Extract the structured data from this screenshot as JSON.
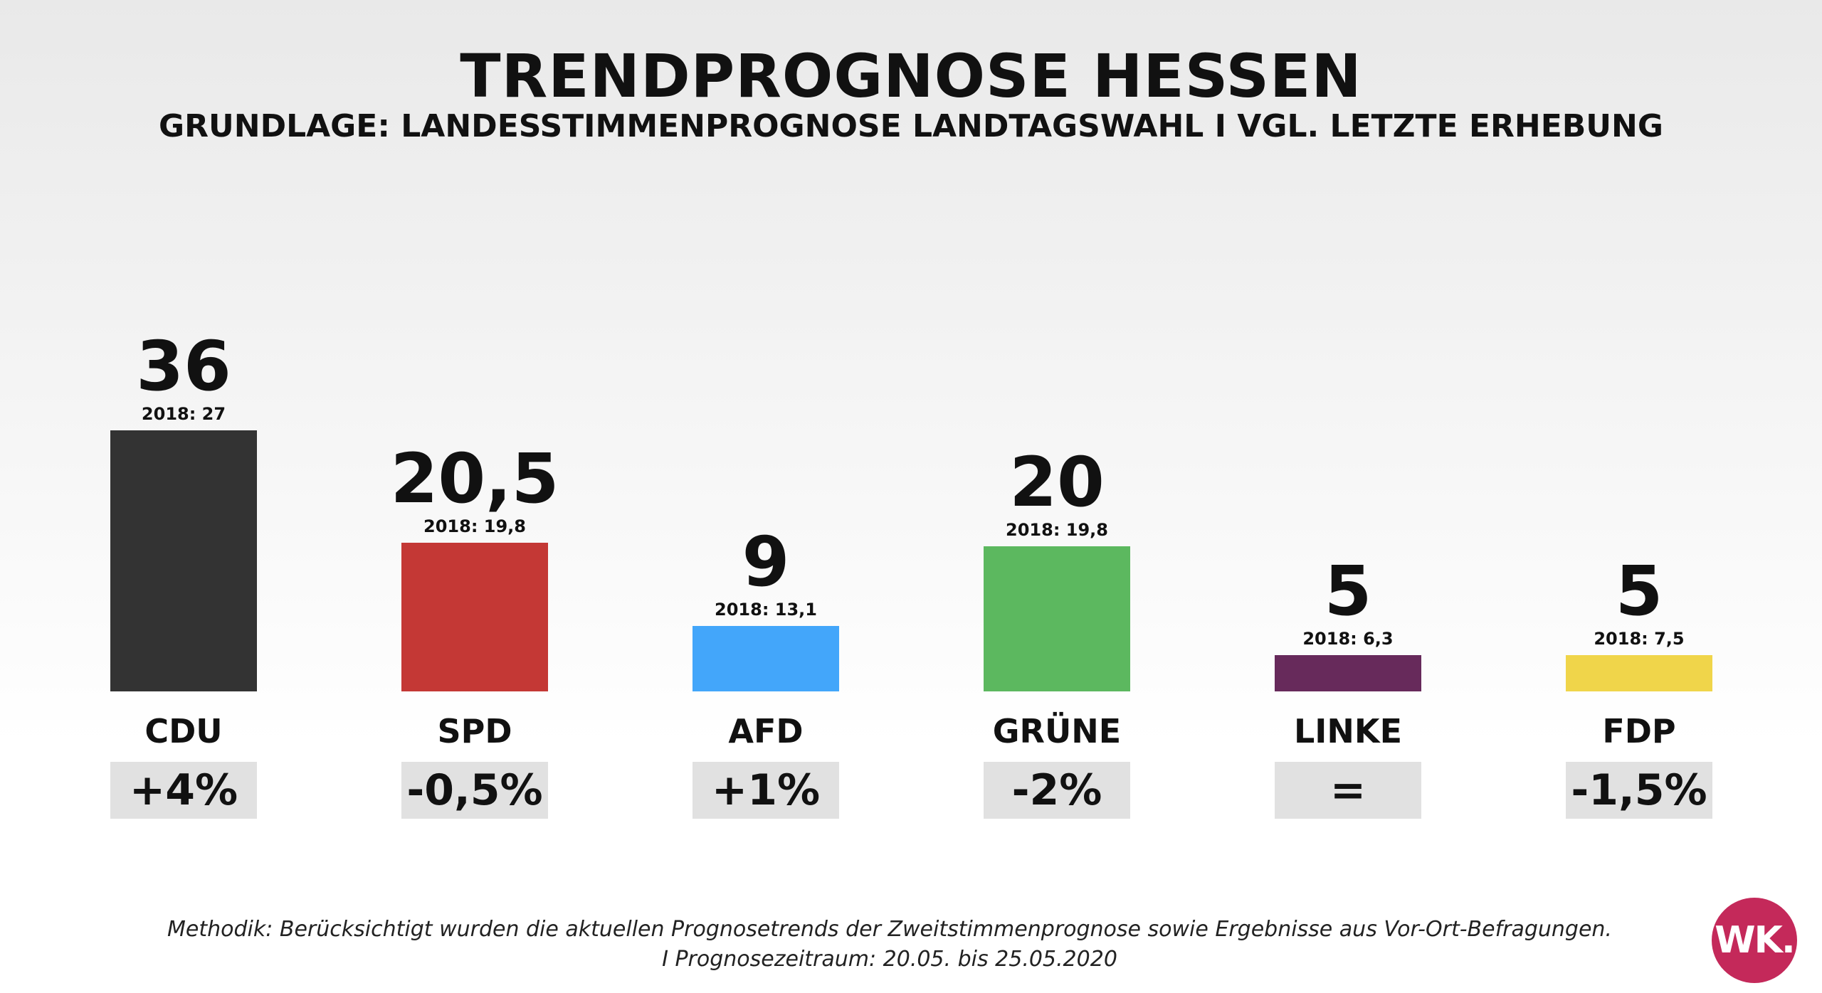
{
  "header": {
    "title": "TRENDPROGNOSE HESSEN",
    "subtitle": "GRUNDLAGE: LANDESSTIMMENPROGNOSE LANDTAGSWAHL I VGL. LETZTE ERHEBUNG"
  },
  "chart_data": {
    "type": "bar",
    "title": "TRENDPROGNOSE HESSEN",
    "subtitle": "GRUNDLAGE: LANDESSTIMMENPROGNOSE LANDTAGSWAHL I VGL. LETZTE ERHEBUNG",
    "categories": [
      "CDU",
      "SPD",
      "AFD",
      "GRÜNE",
      "LINKE",
      "FDP"
    ],
    "values": [
      36,
      20.5,
      9,
      20,
      5,
      5
    ],
    "value_labels": [
      "36",
      "20,5",
      "9",
      "20",
      "5",
      "5"
    ],
    "previous_values": [
      27,
      19.8,
      13.1,
      19.8,
      6.3,
      7.5
    ],
    "previous_labels": [
      "2018: 27",
      "2018: 19,8",
      "2018: 13,1",
      "2018: 19,8",
      "2018: 6,3",
      "2018: 7,5"
    ],
    "changes": [
      "+4%",
      "-0,5%",
      "+1%",
      "-2%",
      "=",
      "-1,5%"
    ],
    "colors": [
      "#333333",
      "#c43835",
      "#43a6fa",
      "#5cb85f",
      "#672a5b",
      "#f0d54a"
    ],
    "xlabel": "",
    "ylabel": "",
    "grid": false,
    "legend": "none"
  },
  "footnote": {
    "line1": "Methodik: Berücksichtigt wurden die aktuellen Prognosetrends der Zweitstimmenprognose sowie Ergebnisse aus Vor-Ort-Befragungen.",
    "line2": "I Prognosezeitraum: 20.05. bis 25.05.2020"
  },
  "logo": {
    "text": "WK.",
    "color": "#c4295a"
  }
}
